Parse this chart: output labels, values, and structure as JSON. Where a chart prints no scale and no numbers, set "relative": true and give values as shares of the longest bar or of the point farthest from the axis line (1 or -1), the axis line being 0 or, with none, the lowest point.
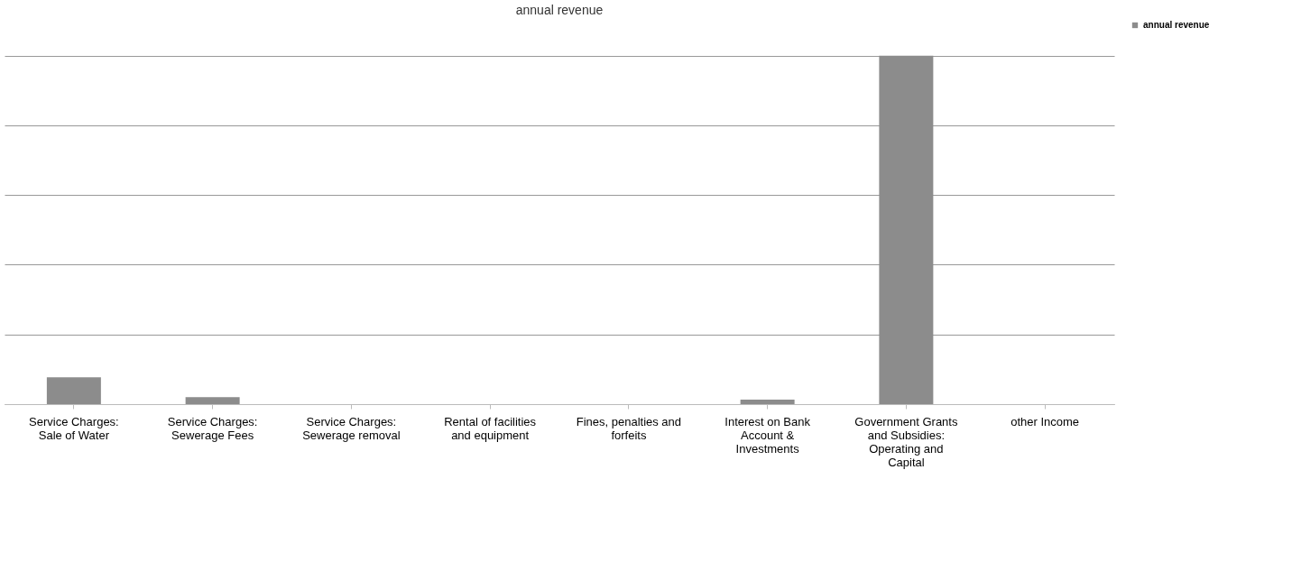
{
  "chart_data": {
    "type": "bar",
    "title": "annual revenue",
    "relative": true,
    "categories": [
      "Service Charges: Sale of Water",
      "Service Charges: Sewerage Fees",
      "Service Charges: Sewerage removal",
      "Rental of facilities and equipment",
      "Fines, penalties and forfeits",
      "Interest on Bank Account & Investments",
      "Government Grants and Subsidies: Operating and Capital",
      "other Income"
    ],
    "series": [
      {
        "name": "annual revenue",
        "color": "#8c8c8c",
        "values": [
          0.077,
          0.02,
          0,
          0,
          0,
          0.013,
          1,
          0
        ]
      }
    ],
    "grid": "y",
    "legend": "right"
  }
}
